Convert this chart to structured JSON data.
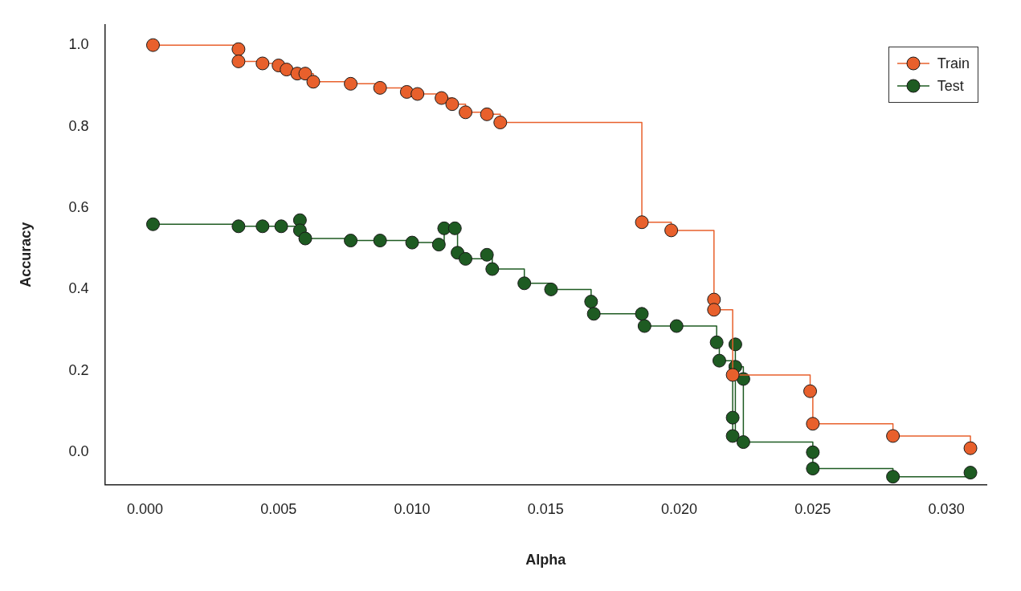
{
  "chart_data": {
    "type": "step",
    "xlabel": "Alpha",
    "ylabel": "Accuracy",
    "xlim": [
      -0.0015,
      0.0315
    ],
    "ylim": [
      -0.08,
      1.05
    ],
    "xticks": [
      {
        "value": 0,
        "label": "0.000"
      },
      {
        "value": 0.005,
        "label": "0.005"
      },
      {
        "value": 0.01,
        "label": "0.010"
      },
      {
        "value": 0.015,
        "label": "0.015"
      },
      {
        "value": 0.02,
        "label": "0.020"
      },
      {
        "value": 0.025,
        "label": "0.025"
      },
      {
        "value": 0.03,
        "label": "0.030"
      }
    ],
    "yticks": [
      {
        "value": 0,
        "label": "0.0"
      },
      {
        "value": 0.2,
        "label": "0.2"
      },
      {
        "value": 0.4,
        "label": "0.4"
      },
      {
        "value": 0.6,
        "label": "0.6"
      },
      {
        "value": 0.8,
        "label": "0.8"
      },
      {
        "value": 1,
        "label": "1.0"
      }
    ],
    "grid": false,
    "legend": "top right",
    "marker": "circle",
    "series": [
      {
        "name": "Train",
        "color": "#e8602c",
        "x": [
          0.0003,
          0.0035,
          0.0035,
          0.0044,
          0.005,
          0.0053,
          0.0057,
          0.006,
          0.0063,
          0.0077,
          0.0088,
          0.0098,
          0.0102,
          0.0111,
          0.0115,
          0.012,
          0.0128,
          0.0133,
          0.0186,
          0.0197,
          0.0213,
          0.0213,
          0.022,
          0.0249,
          0.025,
          0.028,
          0.0309
        ],
        "values": [
          1.0,
          0.99,
          0.96,
          0.955,
          0.95,
          0.94,
          0.93,
          0.93,
          0.91,
          0.905,
          0.895,
          0.885,
          0.88,
          0.87,
          0.855,
          0.835,
          0.83,
          0.81,
          0.565,
          0.545,
          0.375,
          0.35,
          0.19,
          0.15,
          0.07,
          0.04,
          0.01
        ]
      },
      {
        "name": "Test",
        "color": "#1e5b22",
        "x": [
          0.0003,
          0.0035,
          0.0044,
          0.0051,
          0.0058,
          0.0058,
          0.006,
          0.0077,
          0.0088,
          0.01,
          0.011,
          0.0112,
          0.0116,
          0.0117,
          0.012,
          0.0128,
          0.013,
          0.0142,
          0.0152,
          0.0167,
          0.0168,
          0.0186,
          0.0187,
          0.0199,
          0.0214,
          0.0215,
          0.022,
          0.022,
          0.0221,
          0.0221,
          0.0224,
          0.0224,
          0.025,
          0.025,
          0.028,
          0.0309
        ],
        "values": [
          0.56,
          0.555,
          0.555,
          0.555,
          0.57,
          0.545,
          0.525,
          0.52,
          0.52,
          0.515,
          0.51,
          0.55,
          0.55,
          0.49,
          0.475,
          0.485,
          0.45,
          0.415,
          0.4,
          0.37,
          0.34,
          0.34,
          0.31,
          0.31,
          0.27,
          0.225,
          0.085,
          0.04,
          0.265,
          0.21,
          0.18,
          0.025,
          0.0,
          -0.04,
          -0.06,
          -0.05
        ]
      }
    ]
  }
}
